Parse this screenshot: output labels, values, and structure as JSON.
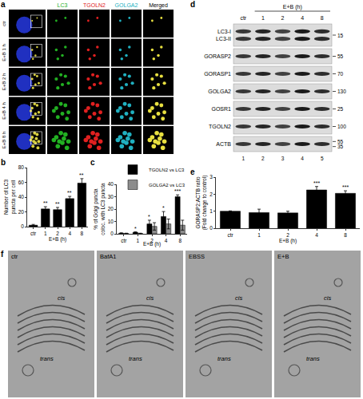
{
  "panel_labels": [
    "a",
    "b",
    "c",
    "d",
    "e",
    "f"
  ],
  "panel_a": {
    "columns": [
      "LC3",
      "TGOLN2",
      "GOLGA2",
      "Merged"
    ],
    "column_colors": [
      "#22b022",
      "#e02020",
      "#20b0c0",
      "#000000"
    ],
    "rows": [
      "ctr",
      "E+B 1 h",
      "E+B 2 h",
      "E+B 4 h",
      "E+B 8 h"
    ]
  },
  "panel_d": {
    "treatment": "E+B (h)",
    "lanes": [
      "ctr",
      "1",
      "2",
      "4",
      "8"
    ],
    "lane_numbers": [
      "1",
      "2",
      "3",
      "4",
      "5"
    ],
    "blots": [
      {
        "labels": [
          "LC3-I",
          "LC3-II"
        ],
        "markers": [
          15
        ]
      },
      {
        "labels": [
          "GORASP2"
        ],
        "markers": [
          55
        ]
      },
      {
        "labels": [
          "GORASP1"
        ],
        "markers": [
          70
        ]
      },
      {
        "labels": [
          "GOLGA2"
        ],
        "markers": [
          130
        ]
      },
      {
        "labels": [
          "GOSR1"
        ],
        "markers": [
          25
        ]
      },
      {
        "labels": [
          "TGOLN2"
        ],
        "markers": [
          100
        ]
      },
      {
        "labels": [
          "ACTB"
        ],
        "markers": [
          55,
          35
        ]
      }
    ]
  },
  "panel_f": {
    "conditions": [
      "ctr",
      "BafA1",
      "EBSS",
      "E+B"
    ],
    "labels": [
      "cis",
      "trans"
    ]
  },
  "chart_data": [
    {
      "type": "bar",
      "categories": [
        "ctr",
        "1",
        "2",
        "4",
        "8"
      ],
      "xlabel": "E+B (h)",
      "ylabel": "Number of LC3 puncta per cell",
      "values": [
        2,
        24,
        23,
        38,
        59
      ],
      "errors": [
        1,
        3,
        3,
        3,
        6
      ],
      "color": "#000000",
      "ylim": [
        0,
        80
      ],
      "yticks": [
        0,
        20,
        40,
        60,
        80
      ],
      "grid": false,
      "annotations": [
        {
          "category": "1",
          "text": "**"
        },
        {
          "category": "2",
          "text": "**"
        },
        {
          "category": "4",
          "text": "**"
        },
        {
          "category": "8",
          "text": "**"
        }
      ]
    },
    {
      "type": "bar",
      "categories": [
        "ctr",
        "1",
        "2",
        "4",
        "8"
      ],
      "xlabel": "E+B (h)",
      "ylabel": "% of Golgi puncta coloc. with LC3 puncta",
      "series": [
        {
          "name": "TGOLN2 vs LC3",
          "color": "#000000",
          "values": [
            0.5,
            1.2,
            8,
            14,
            30
          ],
          "errors": [
            0.3,
            0.4,
            3,
            4,
            1.5
          ]
        },
        {
          "name": "GOLGA2 vs LC3",
          "color": "#8c8c8c",
          "values": [
            0.3,
            0.3,
            6,
            8,
            7
          ],
          "errors": [
            0.2,
            0.2,
            3,
            4,
            4
          ]
        }
      ],
      "ylim": [
        0,
        40
      ],
      "yticks": [
        0,
        10,
        20,
        30,
        40
      ],
      "grid": false,
      "legend": "top left",
      "annotations": [
        {
          "category": "1",
          "series": "TGOLN2 vs LC3",
          "text": "*"
        },
        {
          "category": "2",
          "series": "TGOLN2 vs LC3",
          "text": "*"
        },
        {
          "category": "4",
          "series": "TGOLN2 vs LC3",
          "text": "*"
        },
        {
          "category": "8",
          "series": "TGOLN2 vs LC3",
          "text": "***"
        }
      ]
    },
    {
      "type": "bar",
      "categories": [
        "ctr",
        "1",
        "2",
        "4",
        "8"
      ],
      "xlabel": "E+B (h)",
      "ylabel": "GORASP2:ACTB ratio (Fold change to control)",
      "values": [
        1,
        0.92,
        0.9,
        2.25,
        2.05
      ],
      "errors": [
        0.02,
        0.2,
        0.1,
        0.2,
        0.15
      ],
      "color": "#000000",
      "ylim": [
        0,
        3
      ],
      "yticks": [
        0,
        1,
        2,
        3
      ],
      "grid": false,
      "annotations": [
        {
          "category": "4",
          "text": "***"
        },
        {
          "category": "8",
          "text": "***"
        }
      ]
    }
  ]
}
